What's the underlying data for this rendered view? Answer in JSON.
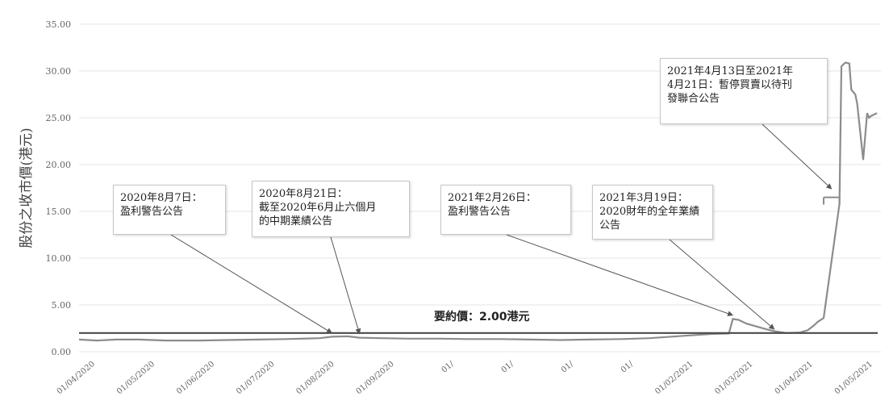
{
  "chart_data": {
    "type": "line",
    "ylabel": "股份之收市價(港元)",
    "ylim": [
      0,
      35
    ],
    "yticks": [
      "0.00",
      "5.00",
      "10.00",
      "15.00",
      "20.00",
      "25.00",
      "30.00",
      "35.00"
    ],
    "x_ticks": [
      "01/04/2020",
      "01/05/2020",
      "01/06/2020",
      "01/07/2020",
      "01/08/2020",
      "01/09/2020",
      "01/",
      "01/",
      "01/",
      "01/",
      "01/02/2021",
      "01/03/2021",
      "01/04/2021",
      "01/05/2021"
    ],
    "grid": true,
    "series": [
      {
        "values_date_start": "2020-04-01",
        "x": [
          "2020-04-01",
          "2020-04-10",
          "2020-04-20",
          "2020-05-01",
          "2020-05-15",
          "2020-06-01",
          "2020-06-15",
          "2020-07-01",
          "2020-07-15",
          "2020-08-01",
          "2020-08-07",
          "2020-08-15",
          "2020-08-21",
          "2020-09-01",
          "2020-09-15",
          "2020-10-01",
          "2020-10-15",
          "2020-11-01",
          "2020-11-15",
          "2020-12-01",
          "2020-12-15",
          "2021-01-01",
          "2021-01-15",
          "2021-02-01",
          "2021-02-15",
          "2021-02-24",
          "2021-02-26",
          "2021-03-01",
          "2021-03-05",
          "2021-03-10",
          "2021-03-15",
          "2021-03-19",
          "2021-03-25",
          "2021-04-01",
          "2021-04-05",
          "2021-04-08",
          "2021-04-10",
          "2021-04-13",
          "2021-04-21",
          "2021-04-22",
          "2021-04-24",
          "2021-04-26",
          "2021-04-27",
          "2021-04-29",
          "2021-04-30",
          "2021-05-03",
          "2021-05-05",
          "2021-05-06",
          "2021-05-07",
          "2021-05-10"
        ],
        "y": [
          1.3,
          1.2,
          1.3,
          1.3,
          1.2,
          1.2,
          1.25,
          1.3,
          1.35,
          1.45,
          1.6,
          1.65,
          1.5,
          1.45,
          1.4,
          1.4,
          1.35,
          1.35,
          1.3,
          1.25,
          1.3,
          1.35,
          1.45,
          1.7,
          1.9,
          1.95,
          3.5,
          3.4,
          3.0,
          2.7,
          2.4,
          2.2,
          2.0,
          2.05,
          2.3,
          2.8,
          3.2,
          3.6,
          15.8,
          30.5,
          30.9,
          30.8,
          28.0,
          27.5,
          26.5,
          20.5,
          25.5,
          25.0,
          25.2,
          25.5
        ]
      },
      {
        "x": [
          "2021-04-13",
          "2021-04-21"
        ],
        "y": [
          16.5,
          16.5
        ]
      }
    ],
    "reference_line": {
      "value": 2.0,
      "label": "要約價：2.00港元"
    },
    "annotations": [
      {
        "text": "2020年8月7日：\n盈利警告公告",
        "date": "2020-08-07"
      },
      {
        "text": "2020年8月21日：\n截至2020年6月止六個月\n的中期業績公告",
        "date": "2020-08-21"
      },
      {
        "text": "2021年2月26日：\n盈利警告公告",
        "date": "2021-02-26"
      },
      {
        "text": "2021年3月19日：\n2020財年的全年業績\n公告",
        "date": "2021-03-19"
      },
      {
        "text": "2021年4月13日至2021年\n4月21日：暫停買賣以待刊\n發聯合公告",
        "date": "2021-04-17"
      }
    ]
  },
  "colors": {
    "series": "#8c8c8c",
    "reference": "#4a4a4a",
    "grid": "#e6e6e6",
    "arrow": "#555555"
  }
}
